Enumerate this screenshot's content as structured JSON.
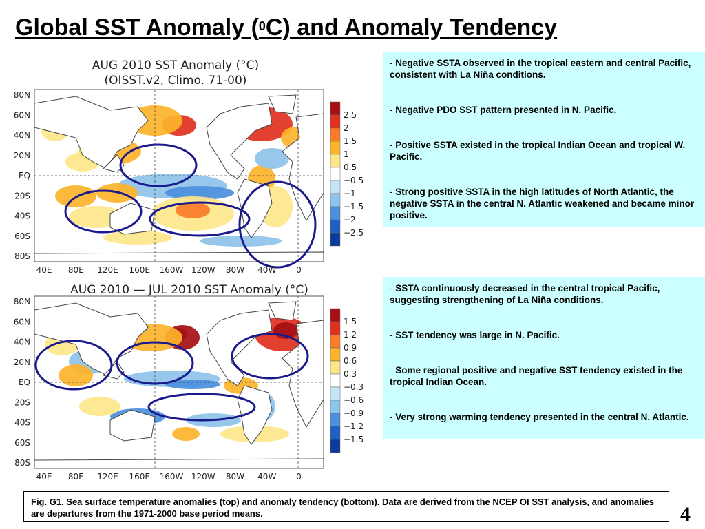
{
  "slide": {
    "title_pre": "Global SST Anomaly (",
    "title_sup": "0",
    "title_post": "C) and Anomaly Tendency",
    "page_number": "4"
  },
  "maps": [
    {
      "title_line1": "AUG 2010 SST Anomaly (°C)",
      "title_line2": "(OISST.v2, Climo. 71-00)",
      "lat_labels": [
        "80N",
        "60N",
        "40N",
        "20N",
        "EQ",
        "20S",
        "40S",
        "60S",
        "80S"
      ],
      "lon_labels": [
        "40E",
        "80E",
        "120E",
        "160E",
        "160W",
        "120W",
        "80W",
        "40W",
        "0"
      ],
      "legend_labels": [
        "2.5",
        "2",
        "1.5",
        "1",
        "0.5",
        "−0.5",
        "−1",
        "−1.5",
        "−2",
        "−2.5"
      ],
      "legend_colors": [
        "#a50f15",
        "#e0301e",
        "#fb7b29",
        "#fdb32a",
        "#fde68a",
        "#ffffff",
        "#c6e4f6",
        "#8ec3ea",
        "#4c8fdc",
        "#1f5fc4",
        "#0b3c9c"
      ]
    },
    {
      "title_line1": "AUG 2010 — JUL 2010 SST Anomaly (°C)",
      "lat_labels": [
        "80N",
        "60N",
        "40N",
        "20N",
        "EQ",
        "20S",
        "40S",
        "60S",
        "80S"
      ],
      "lon_labels": [
        "40E",
        "80E",
        "120E",
        "160E",
        "160W",
        "120W",
        "80W",
        "40W",
        "0"
      ],
      "legend_labels": [
        "1.5",
        "1.2",
        "0.9",
        "0.6",
        "0.3",
        "−0.3",
        "−0.6",
        "−0.9",
        "−1.2",
        "−1.5"
      ],
      "legend_colors": [
        "#a50f15",
        "#e0301e",
        "#fb7b29",
        "#fdb32a",
        "#fde68a",
        "#ffffff",
        "#c6e4f6",
        "#8ec3ea",
        "#4c8fdc",
        "#1f5fc4",
        "#0b3c9c"
      ]
    }
  ],
  "notes_top": [
    "Negative SSTA observed in the tropical eastern and central Pacific, consistent with La Niña conditions.",
    "Negative PDO SST pattern presented in N. Pacific.",
    "Positive SSTA existed in the tropical Indian Ocean and tropical W. Pacific.",
    "Strong positive SSTA  in the high latitudes of North Atlantic, the negative SSTA in the central N. Atlantic weakened and became minor positive."
  ],
  "notes_bottom": [
    "SSTA continuously decreased in the central tropical Pacific, suggesting strengthening of La Niña conditions.",
    "SST tendency was large in N. Pacific.",
    "Some  regional positive and negative SST tendency existed in the tropical Indian Ocean.",
    "Very strong warming tendency presented in the central N. Atlantic."
  ],
  "caption": "Fig. G1. Sea surface temperature anomalies (top) and anomaly tendency (bottom). Data are derived from the NCEP OI SST analysis, and anomalies are departures from the 1971-2000 base period means."
}
